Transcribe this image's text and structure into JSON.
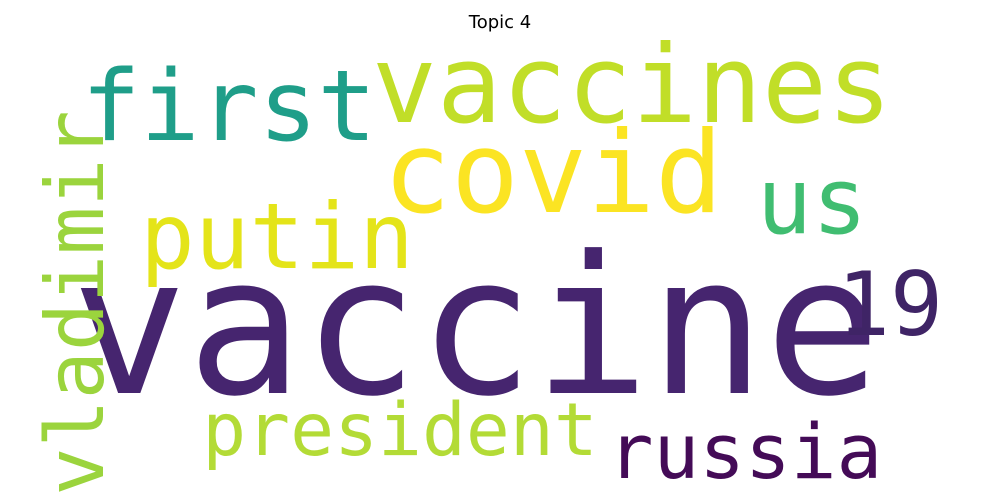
{
  "title": "Topic 4",
  "words": [
    {
      "text": "vaccine",
      "color": "#46256f"
    },
    {
      "text": "vaccines",
      "color": "#c1de28"
    },
    {
      "text": "covid",
      "color": "#fbe423"
    },
    {
      "text": "first",
      "color": "#1f9e89"
    },
    {
      "text": "us",
      "color": "#40bd71"
    },
    {
      "text": "putin",
      "color": "#e4e419"
    },
    {
      "text": "19",
      "color": "#3f2466"
    },
    {
      "text": "vladimir",
      "color": "#9bd43d"
    },
    {
      "text": "president",
      "color": "#b3db36"
    },
    {
      "text": "russia",
      "color": "#440b57"
    }
  ]
}
